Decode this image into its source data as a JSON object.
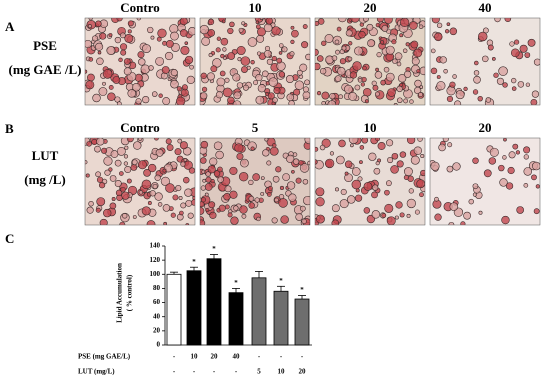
{
  "panels": [
    {
      "label": "A",
      "row_label": [
        "PSE",
        "(mg GAE /L)"
      ],
      "column_headers": [
        "Contro",
        "10",
        "20",
        "40"
      ]
    },
    {
      "label": "B",
      "row_label": [
        "LUT",
        "(mg /L)"
      ],
      "column_headers": [
        "Contro",
        "5",
        "10",
        "20"
      ]
    }
  ],
  "chart_label": "C",
  "chart_data": {
    "type": "bar",
    "y_label": [
      "Lipid Accumulation",
      "( % control)"
    ],
    "ylim": [
      0,
      140
    ],
    "yticks": [
      0,
      20,
      40,
      60,
      80,
      100,
      120,
      140
    ],
    "values": [
      100,
      105,
      122,
      74,
      95,
      76,
      65
    ],
    "errors": [
      3,
      5,
      6,
      6,
      9,
      7,
      5
    ],
    "colors": [
      "#ffffff",
      "#000000",
      "#000000",
      "#000000",
      "#6e6e6e",
      "#6e6e6e",
      "#6e6e6e"
    ],
    "annotations": [
      null,
      "*",
      "*",
      "*",
      null,
      "*",
      "*"
    ],
    "treatment_rows": [
      {
        "name": "PSE  (mg GAE/L)",
        "values": [
          "-",
          "10",
          "20",
          "40",
          "-",
          "-",
          "-"
        ]
      },
      {
        "name": "LUT (mg/L)",
        "values": [
          "-",
          "-",
          "-",
          "-",
          "5",
          "10",
          "20"
        ]
      }
    ]
  }
}
